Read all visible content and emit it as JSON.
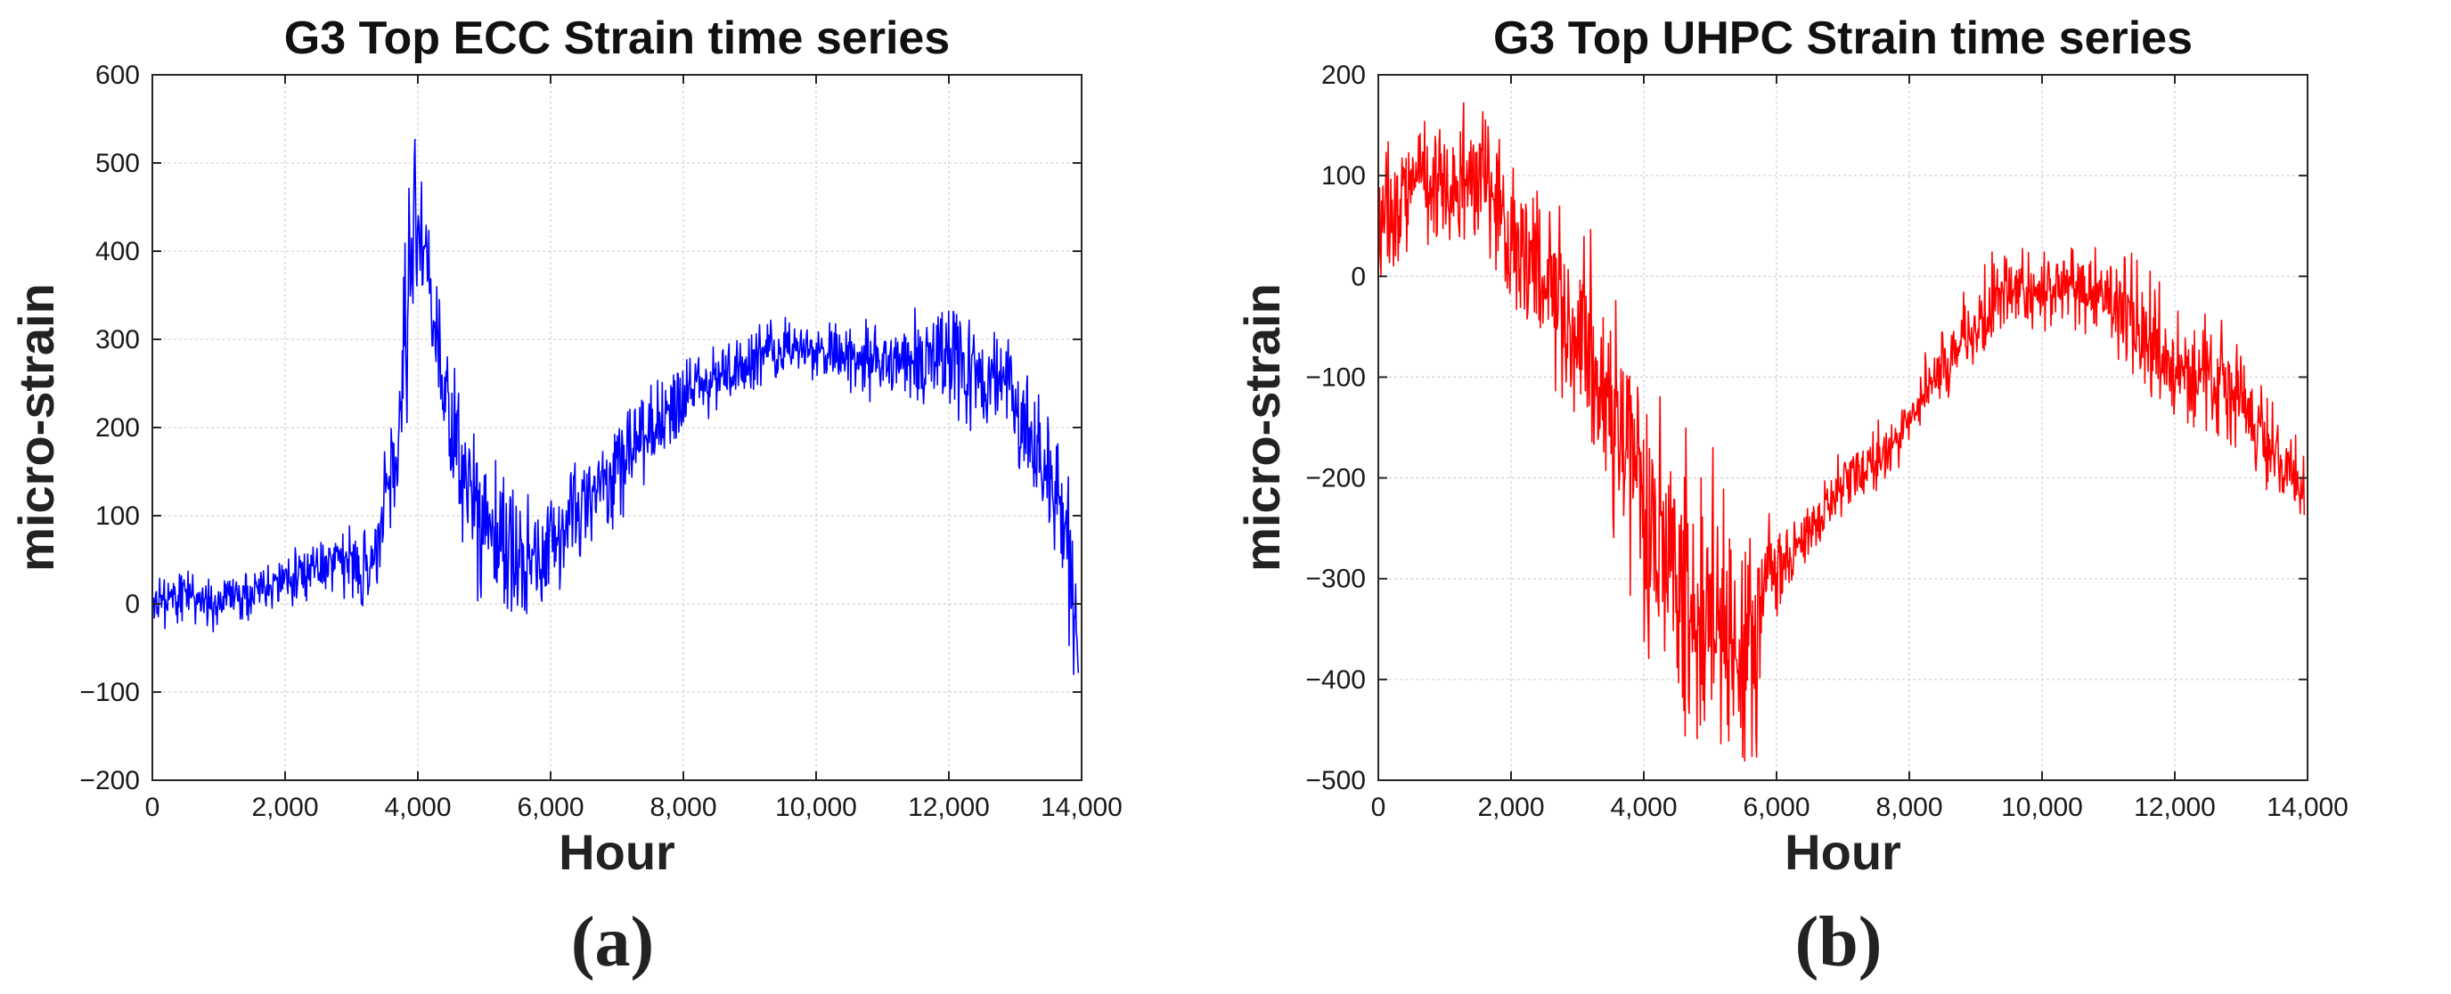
{
  "chart_data": [
    {
      "panel_label": "(a)",
      "type": "line",
      "title": "G3 Top ECC Strain time series",
      "xlabel": "Hour",
      "ylabel": "micro-strain",
      "xlim": [
        0,
        14000
      ],
      "ylim": [
        -200,
        600
      ],
      "xticks": [
        0,
        2000,
        4000,
        6000,
        8000,
        10000,
        12000,
        14000
      ],
      "xtick_labels": [
        "0",
        "2,000",
        "4,000",
        "6,000",
        "8,000",
        "10,000",
        "12,000",
        "14,000"
      ],
      "yticks": [
        -200,
        -100,
        0,
        100,
        200,
        300,
        400,
        500,
        600
      ],
      "ytick_labels": [
        "−200",
        "−100",
        "0",
        "100",
        "200",
        "300",
        "400",
        "500",
        "600"
      ],
      "grid": true,
      "color": "#0000ff",
      "noise": [
        0.14,
        0.4
      ],
      "seed": 11,
      "series": [
        {
          "x": [
            0,
            200,
            500,
            800,
            1000,
            1500,
            2000,
            2500,
            3000,
            3300,
            3400,
            3500,
            3600,
            3700,
            3800,
            3900,
            3950,
            4050,
            4200,
            4400,
            4600,
            4800,
            5000,
            5300,
            5600,
            5800,
            6000,
            6300,
            6600,
            7000,
            7500,
            8000,
            8400,
            9000,
            9500,
            10000,
            10500,
            11000,
            11500,
            12000,
            12500,
            12800,
            13000,
            13200,
            13400,
            13600,
            13800,
            13850,
            13900,
            13950
          ],
          "y": [
            -5,
            5,
            10,
            0,
            0,
            12,
            25,
            38,
            45,
            40,
            50,
            110,
            130,
            140,
            300,
            360,
            470,
            380,
            330,
            230,
            150,
            110,
            80,
            55,
            30,
            25,
            55,
            90,
            115,
            150,
            190,
            230,
            250,
            270,
            285,
            280,
            278,
            275,
            272,
            268,
            250,
            240,
            220,
            180,
            130,
            100,
            60,
            20,
            -40,
            -90
          ],
          "amp": [
            15,
            14,
            15,
            14,
            14,
            14,
            16,
            16,
            20,
            20,
            28,
            28,
            35,
            45,
            60,
            60,
            50,
            50,
            40,
            40,
            40,
            40,
            40,
            40,
            40,
            40,
            35,
            30,
            28,
            28,
            25,
            20,
            18,
            18,
            18,
            18,
            20,
            22,
            28,
            32,
            35,
            35,
            38,
            40,
            40,
            45,
            45,
            40,
            40,
            30
          ]
        }
      ]
    },
    {
      "panel_label": "(b)",
      "type": "line",
      "title": "G3 Top UHPC Strain time series",
      "xlabel": "Hour",
      "ylabel": "micro-strain",
      "xlim": [
        0,
        14000
      ],
      "ylim": [
        -500,
        200
      ],
      "xticks": [
        0,
        2000,
        4000,
        6000,
        8000,
        10000,
        12000,
        14000
      ],
      "xtick_labels": [
        "0",
        "2,000",
        "4,000",
        "6,000",
        "8,000",
        "10,000",
        "12,000",
        "14,000"
      ],
      "yticks": [
        -500,
        -400,
        -300,
        -200,
        -100,
        0,
        100,
        200
      ],
      "ytick_labels": [
        "−500",
        "−400",
        "−300",
        "−200",
        "−100",
        "0",
        "100",
        "200"
      ],
      "grid": true,
      "color": "#ff0000",
      "noise": [
        0.4,
        0.14
      ],
      "seed": 23,
      "series": [
        {
          "x": [
            0,
            150,
            300,
            600,
            900,
            1200,
            1500,
            1800,
            2000,
            2300,
            2500,
            2800,
            3000,
            3300,
            3500,
            3800,
            4000,
            4300,
            4500,
            4800,
            5000,
            5300,
            5600,
            5700,
            5800,
            6000,
            6300,
            6600,
            7000,
            7500,
            8000,
            8200,
            8500,
            9000,
            9300,
            9500,
            10000,
            10500,
            11000,
            11500,
            12000,
            12500,
            13000,
            13300,
            13600,
            13800,
            13950
          ],
          "y": [
            50,
            70,
            80,
            120,
            100,
            110,
            100,
            80,
            50,
            30,
            0,
            -20,
            -50,
            -80,
            -110,
            -170,
            -230,
            -260,
            -290,
            -300,
            -310,
            -320,
            -340,
            -350,
            -290,
            -280,
            -260,
            -240,
            -200,
            -180,
            -140,
            -110,
            -90,
            -40,
            -20,
            -10,
            -5,
            -5,
            -10,
            -50,
            -80,
            -100,
            -120,
            -150,
            -180,
            -200,
            -210
          ],
          "amp": [
            25,
            30,
            30,
            35,
            35,
            35,
            35,
            35,
            35,
            40,
            40,
            45,
            50,
            55,
            60,
            65,
            70,
            70,
            70,
            70,
            70,
            70,
            70,
            60,
            30,
            25,
            20,
            15,
            15,
            15,
            15,
            15,
            18,
            20,
            20,
            20,
            20,
            20,
            25,
            30,
            30,
            30,
            25,
            25,
            22,
            20,
            15
          ]
        }
      ]
    }
  ]
}
